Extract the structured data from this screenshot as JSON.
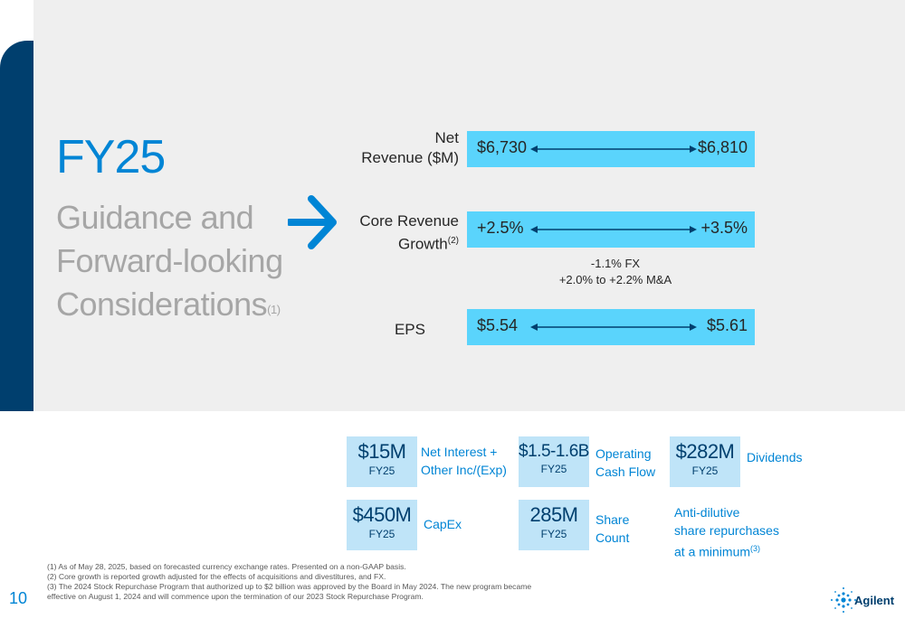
{
  "panel": {
    "title": "FY25",
    "subtitle_lines": [
      "Guidance and",
      "Forward-looking",
      "Considerations"
    ],
    "subtitle_note": "(1)"
  },
  "rows": [
    {
      "label_lines": [
        "Net",
        "Revenue ($M)"
      ],
      "label_note": "",
      "low": "$6,730",
      "high": "$6,810"
    },
    {
      "label_lines": [
        "Core Revenue",
        "Growth"
      ],
      "label_note": "(2)",
      "low": "+2.5%",
      "high": "+3.5%"
    },
    {
      "label_lines": [
        "EPS"
      ],
      "label_note": "",
      "low": "$5.54",
      "high": "$5.61"
    }
  ],
  "core_growth_note": [
    "-1.1% FX",
    "+2.0% to +2.2% M&A"
  ],
  "metrics": [
    {
      "value": "$15M",
      "period": "FY25",
      "label_lines": [
        "Net Interest +",
        "Other Inc/(Exp)"
      ],
      "label_note": ""
    },
    {
      "value": "$1.5-1.6B",
      "period": "FY25",
      "label_lines": [
        "Operating",
        "Cash Flow"
      ],
      "label_note": ""
    },
    {
      "value": "$282M",
      "period": "FY25",
      "label_lines": [
        "Dividends"
      ],
      "label_note": ""
    },
    {
      "value": "$450M",
      "period": "FY25",
      "label_lines": [
        "CapEx"
      ],
      "label_note": ""
    },
    {
      "value": "285M",
      "period": "FY25",
      "label_lines": [
        "Share",
        "Count"
      ],
      "label_note": ""
    },
    {
      "value": "",
      "period": "",
      "label_lines": [
        "Anti-dilutive",
        "share repurchases",
        "at a minimum"
      ],
      "label_note": "(3)"
    }
  ],
  "footnotes": [
    "(1)  As of May 28, 2025, based on forecasted currency exchange rates. Presented on a non-GAAP basis.",
    "(2)  Core growth is reported growth adjusted for the effects of acquisitions and divestitures, and FX.",
    "(3)  The 2024 Stock Repurchase Program that authorized up to $2 billion was approved by the Board in May 2024. The new program became",
    "effective on August 1, 2024 and will commence upon the termination of our 2023 Stock Repurchase Program."
  ],
  "page_number": "10",
  "logo": {
    "name": "Agilent",
    "icon": "agilent-spark-icon"
  },
  "colors": {
    "accent_blue": "#0085d5",
    "navy": "#003f6e",
    "range_bar": "#5ad4fc",
    "metric_box": "#bfe4f8",
    "panel_bg": "#efefef",
    "subtitle_gray": "#a6a6a6"
  }
}
